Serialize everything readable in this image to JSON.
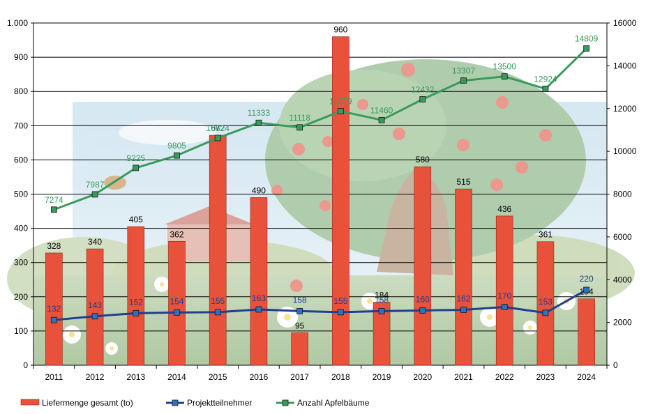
{
  "chart_data": {
    "type": "bar",
    "title": "",
    "categories": [
      "2011",
      "2012",
      "2013",
      "2014",
      "2015",
      "2016",
      "2017",
      "2018",
      "2019",
      "2020",
      "2021",
      "2022",
      "2023",
      "2024"
    ],
    "series": [
      {
        "name": "Liefermenge  gesamt (to)",
        "kind": "bar",
        "axis": "left",
        "color": "#e8513a",
        "values": [
          328,
          340,
          405,
          362,
          672,
          490,
          95,
          960,
          184,
          580,
          515,
          436,
          361,
          194
        ]
      },
      {
        "name": "Projektteilnehmer",
        "kind": "line",
        "axis": "left",
        "color": "#1f3f8f",
        "marker_color": "#3070c0",
        "values": [
          132,
          143,
          152,
          154,
          155,
          163,
          158,
          155,
          158,
          160,
          162,
          170,
          153,
          220
        ]
      },
      {
        "name": "Anzahl Apfelbäume",
        "kind": "line",
        "axis": "right",
        "color": "#3a9a5c",
        "marker_color": "#3a9a5c",
        "values": [
          7274,
          7987,
          9225,
          9805,
          10624,
          11333,
          11118,
          11879,
          11460,
          12432,
          13307,
          13500,
          12924,
          14809
        ]
      }
    ],
    "y_left": {
      "min": 0,
      "max": 1000,
      "ticks": [
        0,
        100,
        200,
        300,
        400,
        500,
        600,
        700,
        800,
        900,
        1000
      ],
      "tick_labels": [
        "0",
        "100",
        "200",
        "300",
        "400",
        "500",
        "600",
        "700",
        "800",
        "900",
        "1.000"
      ]
    },
    "y_right": {
      "min": 0,
      "max": 16000,
      "ticks": [
        0,
        2000,
        4000,
        6000,
        8000,
        10000,
        12000,
        14000,
        16000
      ],
      "tick_labels": [
        "0",
        "2000",
        "4000",
        "6000",
        "8000",
        "10000",
        "12000",
        "14000",
        "16000"
      ]
    },
    "bar_labels": [
      "328",
      "340",
      "405",
      "362",
      "672",
      "490",
      "95",
      "960",
      "184",
      "580",
      "515",
      "436",
      "361",
      "194"
    ],
    "proj_labels": [
      "132",
      "143",
      "152",
      "154",
      "155",
      "163",
      "158",
      "155",
      "158",
      "160",
      "162",
      "170",
      "153",
      "220"
    ],
    "tree_labels": [
      "7274",
      "7987",
      "9225",
      "9805",
      "10624",
      "11333",
      "11118",
      "11879",
      "11460",
      "12432",
      "13307",
      "13500",
      "12924",
      "14809"
    ],
    "grid": true,
    "legend_position": "bottom-left"
  }
}
